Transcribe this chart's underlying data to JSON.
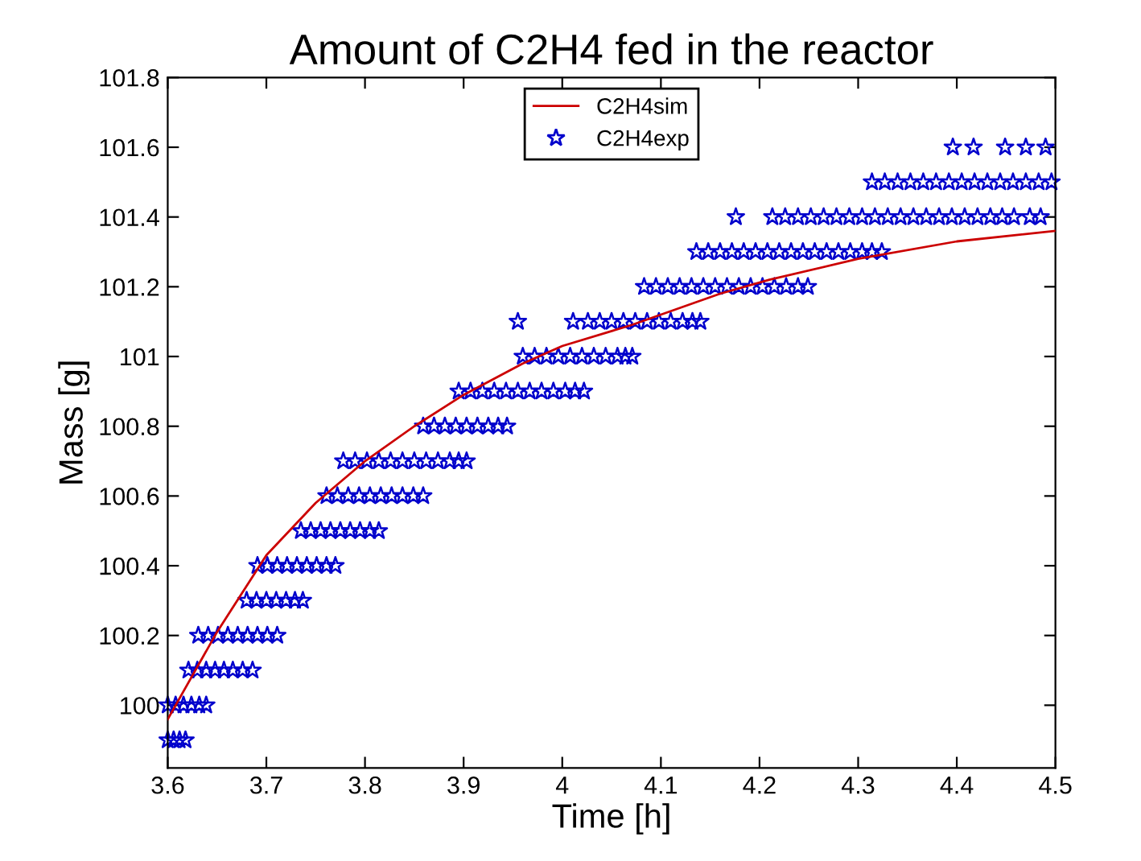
{
  "chart_data": {
    "type": "scatter",
    "title": "Amount of C2H4 fed in the reactor",
    "xlabel": "Time [h]",
    "ylabel": "Mass [g]",
    "xlim": [
      3.6,
      4.5
    ],
    "xticks": [
      3.6,
      3.7,
      3.8,
      3.9,
      4,
      4.1,
      4.2,
      4.3,
      4.4,
      4.5
    ],
    "ylim": [
      99.82,
      101.8
    ],
    "yticks": [
      100,
      100.2,
      100.4,
      100.6,
      100.8,
      101,
      101.2,
      101.4,
      101.6,
      101.8
    ],
    "grid": false,
    "legend": "top",
    "series": [
      {
        "name": "C2H4sim",
        "type": "line",
        "color": "#cc0000",
        "marker": "none",
        "line_style": "solid",
        "x": [
          3.6,
          3.61,
          3.65,
          3.7,
          3.75,
          3.8,
          3.85,
          3.9,
          3.96,
          4.0,
          4.07,
          4.16,
          4.21,
          4.3,
          4.4,
          4.5
        ],
        "values": [
          99.96,
          100.01,
          100.21,
          100.43,
          100.58,
          100.7,
          100.8,
          100.89,
          100.98,
          101.03,
          101.09,
          101.18,
          101.22,
          101.28,
          101.33,
          101.36
        ]
      },
      {
        "name": "C2H4exp",
        "color": "#0000cc",
        "marker": "star",
        "x": [
          3.6,
          3.606,
          3.612,
          3.618,
          3.6,
          3.608,
          3.616,
          3.624,
          3.632,
          3.639,
          3.621,
          3.63,
          3.639,
          3.648,
          3.657,
          3.666,
          3.676,
          3.686,
          3.631,
          3.641,
          3.651,
          3.661,
          3.671,
          3.681,
          3.691,
          3.701,
          3.711,
          3.68,
          3.69,
          3.7,
          3.71,
          3.72,
          3.729,
          3.737,
          3.691,
          3.701,
          3.711,
          3.721,
          3.731,
          3.741,
          3.751,
          3.761,
          3.77,
          3.735,
          3.745,
          3.755,
          3.765,
          3.775,
          3.785,
          3.795,
          3.805,
          3.814,
          3.761,
          3.772,
          3.783,
          3.794,
          3.805,
          3.816,
          3.827,
          3.838,
          3.849,
          3.859,
          3.778,
          3.79,
          3.802,
          3.814,
          3.826,
          3.838,
          3.85,
          3.862,
          3.874,
          3.886,
          3.895,
          3.903,
          3.859,
          3.87,
          3.881,
          3.892,
          3.903,
          3.914,
          3.925,
          3.935,
          3.944,
          3.895,
          3.907,
          3.919,
          3.931,
          3.943,
          3.955,
          3.967,
          3.979,
          3.991,
          4.003,
          4.013,
          4.022,
          3.96,
          3.972,
          3.984,
          3.996,
          4.008,
          4.02,
          4.032,
          4.044,
          4.056,
          4.064,
          4.071,
          3.955,
          4.011,
          4.026,
          4.038,
          4.05,
          4.062,
          4.074,
          4.086,
          4.098,
          4.11,
          4.122,
          4.132,
          4.14,
          4.083,
          4.095,
          4.107,
          4.119,
          4.131,
          4.143,
          4.155,
          4.167,
          4.179,
          4.191,
          4.203,
          4.215,
          4.227,
          4.239,
          4.249,
          4.136,
          4.148,
          4.16,
          4.172,
          4.184,
          4.196,
          4.208,
          4.22,
          4.232,
          4.244,
          4.256,
          4.268,
          4.28,
          4.292,
          4.304,
          4.314,
          4.324,
          4.176,
          4.213,
          4.226,
          4.239,
          4.252,
          4.265,
          4.278,
          4.291,
          4.304,
          4.317,
          4.33,
          4.343,
          4.356,
          4.369,
          4.382,
          4.395,
          4.408,
          4.421,
          4.434,
          4.446,
          4.458,
          4.474,
          4.485,
          4.314,
          4.327,
          4.34,
          4.353,
          4.366,
          4.379,
          4.392,
          4.405,
          4.418,
          4.431,
          4.444,
          4.457,
          4.47,
          4.483,
          4.496,
          4.396,
          4.417,
          4.449,
          4.47,
          4.49
        ],
        "values": [
          99.9,
          99.9,
          99.9,
          99.9,
          100,
          100,
          100,
          100,
          100,
          100,
          100.1,
          100.1,
          100.1,
          100.1,
          100.1,
          100.1,
          100.1,
          100.1,
          100.2,
          100.2,
          100.2,
          100.2,
          100.2,
          100.2,
          100.2,
          100.2,
          100.2,
          100.3,
          100.3,
          100.3,
          100.3,
          100.3,
          100.3,
          100.3,
          100.4,
          100.4,
          100.4,
          100.4,
          100.4,
          100.4,
          100.4,
          100.4,
          100.4,
          100.5,
          100.5,
          100.5,
          100.5,
          100.5,
          100.5,
          100.5,
          100.5,
          100.5,
          100.6,
          100.6,
          100.6,
          100.6,
          100.6,
          100.6,
          100.6,
          100.6,
          100.6,
          100.6,
          100.7,
          100.7,
          100.7,
          100.7,
          100.7,
          100.7,
          100.7,
          100.7,
          100.7,
          100.7,
          100.7,
          100.7,
          100.8,
          100.8,
          100.8,
          100.8,
          100.8,
          100.8,
          100.8,
          100.8,
          100.8,
          100.9,
          100.9,
          100.9,
          100.9,
          100.9,
          100.9,
          100.9,
          100.9,
          100.9,
          100.9,
          100.9,
          100.9,
          101,
          101,
          101,
          101,
          101,
          101,
          101,
          101,
          101,
          101,
          101,
          101.1,
          101.1,
          101.1,
          101.1,
          101.1,
          101.1,
          101.1,
          101.1,
          101.1,
          101.1,
          101.1,
          101.1,
          101.1,
          101.2,
          101.2,
          101.2,
          101.2,
          101.2,
          101.2,
          101.2,
          101.2,
          101.2,
          101.2,
          101.2,
          101.2,
          101.2,
          101.2,
          101.2,
          101.3,
          101.3,
          101.3,
          101.3,
          101.3,
          101.3,
          101.3,
          101.3,
          101.3,
          101.3,
          101.3,
          101.3,
          101.3,
          101.3,
          101.3,
          101.3,
          101.3,
          101.4,
          101.4,
          101.4,
          101.4,
          101.4,
          101.4,
          101.4,
          101.4,
          101.4,
          101.4,
          101.4,
          101.4,
          101.4,
          101.4,
          101.4,
          101.4,
          101.4,
          101.4,
          101.4,
          101.4,
          101.4,
          101.4,
          101.4,
          101.5,
          101.5,
          101.5,
          101.5,
          101.5,
          101.5,
          101.5,
          101.5,
          101.5,
          101.5,
          101.5,
          101.5,
          101.5,
          101.5,
          101.5,
          101.6,
          101.6,
          101.6,
          101.6,
          101.6
        ]
      }
    ]
  }
}
